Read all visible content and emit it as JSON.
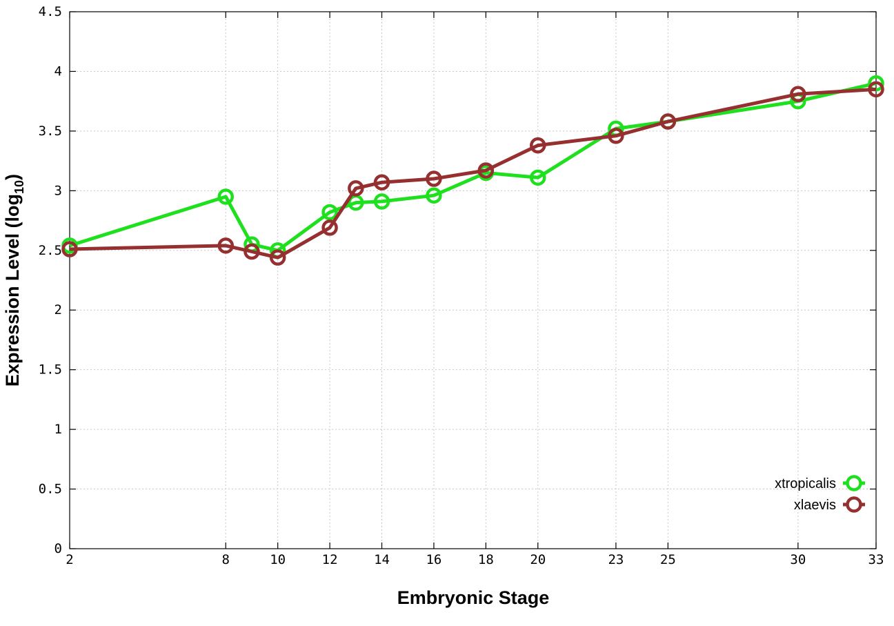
{
  "chart_data": {
    "type": "line",
    "title": "",
    "xlabel": "Embryonic Stage",
    "ylabel_main": "Expression Level (log",
    "ylabel_sub": "10",
    "ylabel_close": ")",
    "xlim": [
      2,
      33
    ],
    "ylim": [
      0,
      4.5
    ],
    "x_ticks": [
      2,
      8,
      10,
      12,
      14,
      16,
      18,
      20,
      23,
      25,
      30,
      33
    ],
    "x_tick_labels": [
      "2",
      "8",
      "10",
      "12",
      "14",
      "16",
      "18",
      "20",
      "23",
      "25",
      "30",
      "33"
    ],
    "y_ticks": [
      0,
      0.5,
      1,
      1.5,
      2,
      2.5,
      3,
      3.5,
      4,
      4.5
    ],
    "y_tick_labels": [
      "0",
      "0.5",
      "1",
      "1.5",
      "2",
      "2.5",
      "3",
      "3.5",
      "4",
      "4.5"
    ],
    "grid": true,
    "legend_position": "bottom-right",
    "x": [
      2,
      8,
      9,
      10,
      12,
      13,
      14,
      16,
      18,
      20,
      23,
      25,
      30,
      33
    ],
    "series": [
      {
        "name": "xtropicalis",
        "color": "#1fe01f",
        "values": [
          2.54,
          2.95,
          2.55,
          2.5,
          2.82,
          2.9,
          2.91,
          2.96,
          3.15,
          3.11,
          3.52,
          3.58,
          3.75,
          3.9
        ]
      },
      {
        "name": "xlaevis",
        "color": "#962f2f",
        "values": [
          2.51,
          2.54,
          2.49,
          2.44,
          2.69,
          3.02,
          3.07,
          3.1,
          3.17,
          3.38,
          3.46,
          3.58,
          3.81,
          3.85
        ]
      }
    ]
  }
}
